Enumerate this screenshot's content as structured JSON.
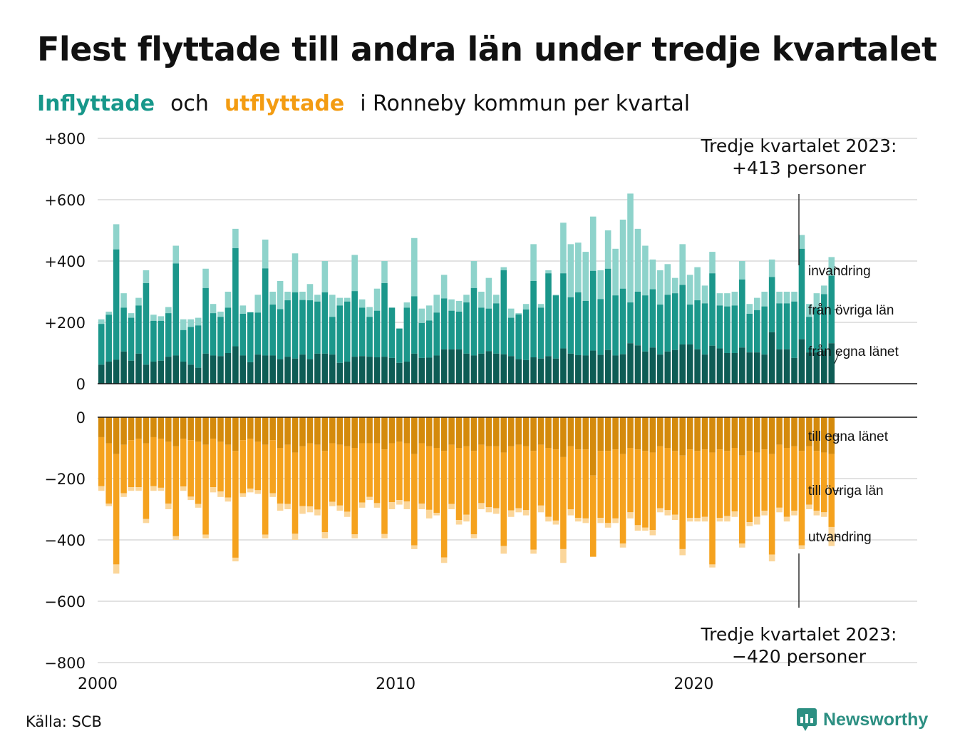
{
  "title": "Flest flyttade till andra län under tredje kvartalet",
  "subtitle": {
    "inflow_word": "Inflyttade",
    "and_word": "och",
    "outflow_word": "utflyttade",
    "rest": "i Ronneby  kommun  per  kvartal"
  },
  "source": "Källa: SCB",
  "logo": {
    "name": "Newsworthy",
    "icon": "bar-chart-speech-bubble-icon"
  },
  "colors": {
    "inflow_own_county": "#0e5c55",
    "inflow_other_counties": "#1b978b",
    "inflow_immigration": "#8ed3cb",
    "outflow_own_county": "#d48a0c",
    "outflow_other_counties": "#f5a21e",
    "outflow_emigration": "#fbd69a",
    "title_inflow": "#17978a",
    "title_outflow": "#f39c12"
  },
  "chart_data": {
    "type": "bar",
    "stacked": true,
    "x_unit": "kvartal (2000 Q1 – 2023 Q3)",
    "x_start": "2000 Q1",
    "xlim": [
      2000,
      2027.5
    ],
    "x_ticks": [
      "2000",
      "2010",
      "2020"
    ],
    "y_ticks_top": [
      "+800",
      "+600",
      "+400",
      "+200",
      "0"
    ],
    "y_ticks_bottom": [
      "0",
      "−200",
      "−400",
      "−600",
      "−800"
    ],
    "ylim": [
      -800,
      800
    ],
    "grid": true,
    "inflow_labels": [
      "invandring",
      "från övriga län",
      "från egna länet"
    ],
    "outflow_labels": [
      "till egna länet",
      "till övriga län",
      "utvandring"
    ],
    "annotations": {
      "inflow_q3_2023": [
        "Tredje kvartalet 2023:",
        "+413 personer"
      ],
      "outflow_q3_2023": [
        "Tredje kvartalet 2023:",
        "−420 personer"
      ]
    },
    "inflow_totals": [
      210,
      235,
      520,
      295,
      230,
      280,
      370,
      225,
      220,
      250,
      450,
      210,
      210,
      215,
      375,
      260,
      235,
      300,
      505,
      255,
      230,
      290,
      470,
      300,
      335,
      300,
      425,
      300,
      325,
      290,
      400,
      290,
      280,
      280,
      420,
      275,
      250,
      310,
      400,
      240,
      180,
      265,
      475,
      245,
      255,
      290,
      355,
      275,
      270,
      290,
      400,
      300,
      345,
      290,
      380,
      245,
      230,
      260,
      455,
      260,
      370,
      290,
      525,
      455,
      460,
      430,
      545,
      370,
      500,
      440,
      535,
      620,
      505,
      450,
      405,
      370,
      390,
      345,
      455,
      355,
      380,
      320,
      430,
      295,
      295,
      300,
      400,
      260,
      280,
      300,
      405,
      300,
      300,
      300,
      485,
      260,
      295,
      320,
      413
    ],
    "inflow_other_counties": [
      195,
      225,
      438,
      248,
      215,
      255,
      328,
      205,
      205,
      230,
      392,
      175,
      185,
      190,
      312,
      230,
      218,
      248,
      442,
      228,
      233,
      232,
      376,
      258,
      243,
      272,
      298,
      273,
      272,
      268,
      298,
      218,
      255,
      268,
      302,
      248,
      218,
      238,
      328,
      248,
      180,
      248,
      285,
      198,
      206,
      232,
      278,
      238,
      235,
      265,
      312,
      248,
      245,
      262,
      370,
      215,
      226,
      242,
      335,
      248,
      360,
      288,
      360,
      282,
      298,
      270,
      368,
      276,
      375,
      288,
      310,
      265,
      300,
      288,
      308,
      258,
      290,
      295,
      322,
      258,
      272,
      262,
      360,
      255,
      252,
      255,
      340,
      228,
      240,
      252,
      348,
      262,
      262,
      268,
      440,
      218,
      248,
      292,
      352
    ],
    "inflow_own_county": [
      62,
      72,
      78,
      105,
      75,
      98,
      62,
      72,
      75,
      88,
      92,
      72,
      62,
      52,
      98,
      92,
      90,
      100,
      122,
      92,
      70,
      95,
      92,
      92,
      80,
      88,
      82,
      95,
      80,
      98,
      98,
      95,
      68,
      72,
      88,
      90,
      88,
      86,
      88,
      84,
      68,
      72,
      98,
      84,
      85,
      92,
      112,
      112,
      112,
      98,
      92,
      98,
      106,
      98,
      96,
      90,
      80,
      77,
      86,
      82,
      90,
      82,
      115,
      98,
      93,
      92,
      108,
      94,
      110,
      92,
      96,
      132,
      125,
      105,
      118,
      95,
      105,
      110,
      128,
      128,
      112,
      95,
      124,
      115,
      100,
      100,
      118,
      102,
      102,
      95,
      168,
      112,
      112,
      84,
      145,
      102,
      102,
      108,
      132
    ],
    "outflow_totals": [
      -240,
      -290,
      -510,
      -260,
      -240,
      -240,
      -345,
      -240,
      -240,
      -300,
      -400,
      -240,
      -270,
      -295,
      -395,
      -245,
      -260,
      -275,
      -470,
      -260,
      -245,
      -250,
      -395,
      -260,
      -305,
      -300,
      -400,
      -315,
      -310,
      -320,
      -395,
      -290,
      -305,
      -325,
      -395,
      -295,
      -270,
      -295,
      -395,
      -300,
      -285,
      -300,
      -430,
      -300,
      -330,
      -320,
      -475,
      -300,
      -350,
      -340,
      -395,
      -300,
      -310,
      -315,
      -445,
      -325,
      -310,
      -320,
      -445,
      -310,
      -340,
      -350,
      -475,
      -320,
      -340,
      -345,
      -435,
      -345,
      -360,
      -345,
      -425,
      -330,
      -370,
      -370,
      -385,
      -310,
      -320,
      -335,
      -450,
      -340,
      -340,
      -340,
      -490,
      -340,
      -340,
      -325,
      -425,
      -355,
      -350,
      -320,
      -470,
      -310,
      -340,
      -320,
      -430,
      -300,
      -320,
      -325,
      -420
    ],
    "outflow_other_counties": [
      -225,
      -282,
      -480,
      -248,
      -228,
      -228,
      -332,
      -225,
      -230,
      -282,
      -388,
      -226,
      -259,
      -283,
      -383,
      -228,
      -242,
      -262,
      -458,
      -248,
      -233,
      -238,
      -383,
      -248,
      -282,
      -283,
      -380,
      -290,
      -291,
      -301,
      -375,
      -276,
      -288,
      -308,
      -382,
      -278,
      -260,
      -280,
      -381,
      -277,
      -270,
      -275,
      -418,
      -282,
      -302,
      -312,
      -457,
      -283,
      -335,
      -318,
      -382,
      -280,
      -293,
      -297,
      -420,
      -304,
      -297,
      -303,
      -432,
      -288,
      -325,
      -337,
      -430,
      -300,
      -328,
      -330,
      -455,
      -328,
      -345,
      -330,
      -412,
      -310,
      -352,
      -360,
      -368,
      -297,
      -303,
      -318,
      -430,
      -328,
      -328,
      -325,
      -480,
      -328,
      -322,
      -307,
      -412,
      -342,
      -325,
      -305,
      -448,
      -295,
      -325,
      -305,
      -418,
      -285,
      -305,
      -310,
      -358
    ],
    "outflow_own_county": [
      -65,
      -85,
      -120,
      -90,
      -75,
      -70,
      -85,
      -65,
      -70,
      -80,
      -95,
      -70,
      -75,
      -80,
      -90,
      -70,
      -80,
      -90,
      -110,
      -75,
      -70,
      -80,
      -90,
      -75,
      -100,
      -90,
      -115,
      -95,
      -85,
      -90,
      -110,
      -85,
      -90,
      -95,
      -100,
      -85,
      -85,
      -85,
      -105,
      -85,
      -80,
      -85,
      -120,
      -85,
      -95,
      -100,
      -110,
      -90,
      -100,
      -95,
      -110,
      -90,
      -95,
      -95,
      -115,
      -95,
      -90,
      -95,
      -110,
      -90,
      -100,
      -105,
      -130,
      -95,
      -105,
      -105,
      -190,
      -110,
      -110,
      -105,
      -120,
      -100,
      -105,
      -110,
      -115,
      -95,
      -100,
      -110,
      -125,
      -105,
      -110,
      -105,
      -115,
      -105,
      -110,
      -100,
      -125,
      -110,
      -115,
      -105,
      -120,
      -90,
      -100,
      -95,
      -110,
      -95,
      -110,
      -115,
      -120
    ]
  }
}
